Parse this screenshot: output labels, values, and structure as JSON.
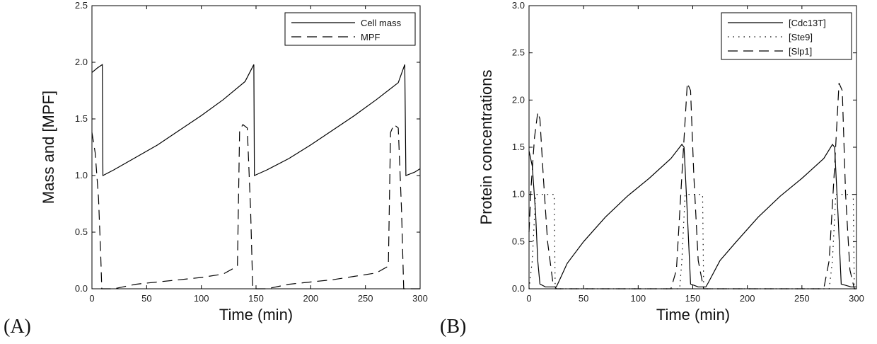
{
  "chart_data": [
    {
      "type": "line",
      "panel_label": "(A)",
      "xlabel": "Time (min)",
      "ylabel": "Mass and [MPF]",
      "xlim": [
        0,
        300
      ],
      "ylim": [
        0,
        2.5
      ],
      "xticks": [
        "0",
        "50",
        "100",
        "150",
        "200",
        "250",
        "300"
      ],
      "yticks": [
        "0.0",
        "0.5",
        "1.0",
        "1.5",
        "2.0",
        "2.5"
      ],
      "legend_position": "top-right",
      "series": [
        {
          "name": "Cell mass",
          "dash": "solid",
          "points": [
            [
              0,
              1.91
            ],
            [
              5,
              1.95
            ],
            [
              9.5,
              1.98
            ],
            [
              10,
              1.0
            ],
            [
              20,
              1.05
            ],
            [
              40,
              1.16
            ],
            [
              60,
              1.27
            ],
            [
              80,
              1.4
            ],
            [
              100,
              1.53
            ],
            [
              120,
              1.67
            ],
            [
              140,
              1.83
            ],
            [
              148,
              1.98
            ],
            [
              148.5,
              1.0
            ],
            [
              160,
              1.05
            ],
            [
              180,
              1.15
            ],
            [
              200,
              1.27
            ],
            [
              220,
              1.4
            ],
            [
              240,
              1.53
            ],
            [
              260,
              1.67
            ],
            [
              280,
              1.82
            ],
            [
              286,
              1.98
            ],
            [
              287,
              1.0
            ],
            [
              295,
              1.03
            ],
            [
              300,
              1.06
            ]
          ]
        },
        {
          "name": "MPF",
          "dash": "dashed",
          "points": [
            [
              0,
              1.38
            ],
            [
              3,
              1.2
            ],
            [
              6,
              0.8
            ],
            [
              8,
              0.3
            ],
            [
              9,
              0.0
            ],
            [
              20,
              0.0
            ],
            [
              40,
              0.04
            ],
            [
              60,
              0.06
            ],
            [
              80,
              0.08
            ],
            [
              100,
              0.1
            ],
            [
              120,
              0.13
            ],
            [
              133,
              0.2
            ],
            [
              135,
              1.4
            ],
            [
              138,
              1.45
            ],
            [
              142,
              1.42
            ],
            [
              145,
              0.7
            ],
            [
              147,
              0.0
            ],
            [
              160,
              0.0
            ],
            [
              180,
              0.04
            ],
            [
              200,
              0.06
            ],
            [
              220,
              0.08
            ],
            [
              240,
              0.11
            ],
            [
              260,
              0.14
            ],
            [
              271,
              0.2
            ],
            [
              273,
              1.38
            ],
            [
              276,
              1.45
            ],
            [
              280,
              1.42
            ],
            [
              283,
              0.7
            ],
            [
              285,
              0.0
            ],
            [
              300,
              0.0
            ]
          ]
        }
      ]
    },
    {
      "type": "line",
      "panel_label": "(B)",
      "xlabel": "Time (min)",
      "ylabel": "Protein concentrations",
      "xlim": [
        0,
        300
      ],
      "ylim": [
        0,
        3
      ],
      "xticks": [
        "0",
        "50",
        "100",
        "150",
        "200",
        "250",
        "300"
      ],
      "yticks": [
        "0.0",
        "0.5",
        "1.0",
        "1.5",
        "2.0",
        "2.5",
        "3.0"
      ],
      "legend_position": "top-right",
      "series": [
        {
          "name": "[Cdc13T]",
          "dash": "solid",
          "points": [
            [
              0,
              1.46
            ],
            [
              3,
              1.3
            ],
            [
              6,
              0.8
            ],
            [
              8,
              0.3
            ],
            [
              10,
              0.05
            ],
            [
              15,
              0.02
            ],
            [
              23,
              0.02
            ],
            [
              25,
              0.02
            ],
            [
              27,
              0.07
            ],
            [
              35,
              0.27
            ],
            [
              50,
              0.5
            ],
            [
              70,
              0.76
            ],
            [
              90,
              0.98
            ],
            [
              110,
              1.17
            ],
            [
              130,
              1.38
            ],
            [
              140,
              1.53
            ],
            [
              142,
              1.5
            ],
            [
              145,
              0.8
            ],
            [
              148,
              0.05
            ],
            [
              155,
              0.02
            ],
            [
              162,
              0.02
            ],
            [
              164,
              0.06
            ],
            [
              175,
              0.3
            ],
            [
              190,
              0.5
            ],
            [
              210,
              0.76
            ],
            [
              230,
              0.98
            ],
            [
              250,
              1.17
            ],
            [
              270,
              1.38
            ],
            [
              278,
              1.53
            ],
            [
              280,
              1.5
            ],
            [
              283,
              0.8
            ],
            [
              286,
              0.05
            ],
            [
              295,
              0.02
            ],
            [
              300,
              0.02
            ]
          ]
        },
        {
          "name": "[Ste9]",
          "dash": "dotted",
          "points": [
            [
              0,
              0.0
            ],
            [
              3,
              0.3
            ],
            [
              6,
              1.0
            ],
            [
              20,
              1.0
            ],
            [
              23,
              1.0
            ],
            [
              24,
              0.0
            ],
            [
              138,
              0.0
            ],
            [
              140,
              0.3
            ],
            [
              143,
              1.0
            ],
            [
              159,
              1.0
            ],
            [
              160,
              0.0
            ],
            [
              275,
              0.0
            ],
            [
              278,
              0.3
            ],
            [
              281,
              1.0
            ],
            [
              297,
              1.0
            ],
            [
              298,
              0.0
            ],
            [
              300,
              0.0
            ]
          ]
        },
        {
          "name": "[Slp1]",
          "dash": "dashdot",
          "points": [
            [
              0,
              0.6
            ],
            [
              2,
              1.1
            ],
            [
              5,
              1.6
            ],
            [
              8,
              1.87
            ],
            [
              10,
              1.8
            ],
            [
              13,
              1.2
            ],
            [
              17,
              0.5
            ],
            [
              22,
              0.05
            ],
            [
              25,
              0.0
            ],
            [
              130,
              0.0
            ],
            [
              135,
              0.2
            ],
            [
              140,
              1.2
            ],
            [
              145,
              2.18
            ],
            [
              148,
              2.1
            ],
            [
              151,
              1.2
            ],
            [
              155,
              0.3
            ],
            [
              160,
              0.0
            ],
            [
              270,
              0.0
            ],
            [
              275,
              0.3
            ],
            [
              280,
              1.3
            ],
            [
              284,
              2.18
            ],
            [
              287,
              2.1
            ],
            [
              290,
              1.0
            ],
            [
              294,
              0.2
            ],
            [
              298,
              0.0
            ],
            [
              300,
              0.0
            ]
          ]
        }
      ]
    }
  ]
}
